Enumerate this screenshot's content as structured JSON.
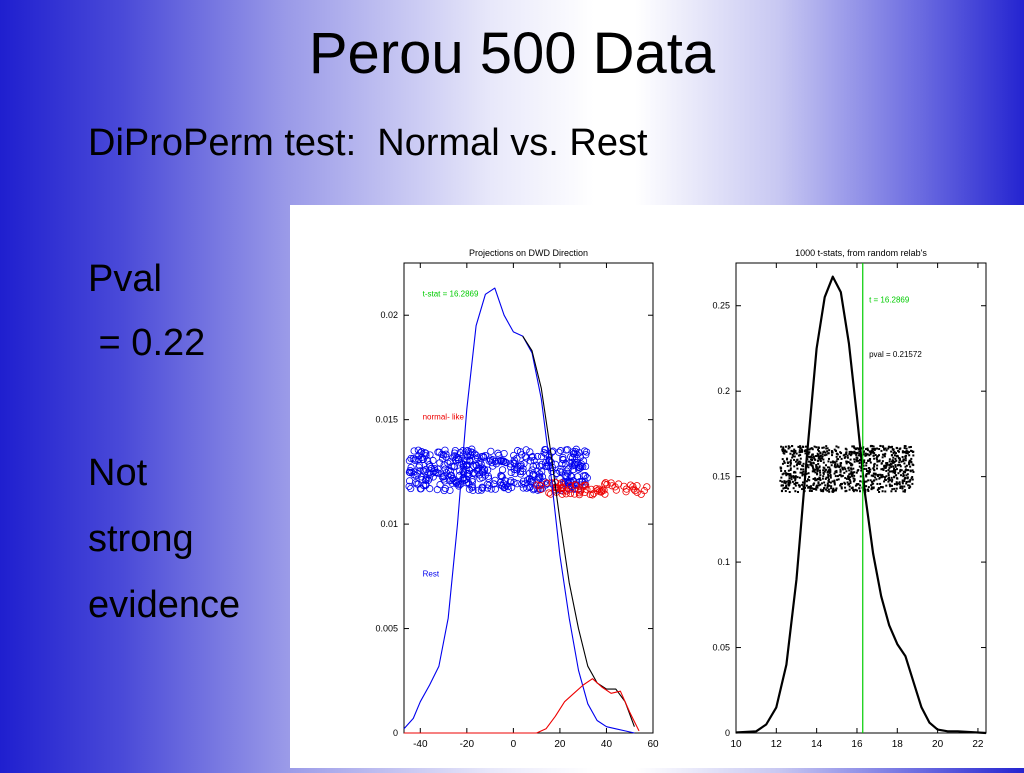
{
  "slide": {
    "title": "Perou 500 Data",
    "subtitle": "DiProPerm test:  Normal vs. Rest",
    "bullets": [
      "Pval",
      " = 0.22",
      "Not",
      "strong",
      "evidence"
    ]
  },
  "colors": {
    "blue": "#0000ee",
    "red": "#ee0000",
    "green": "#00cc00",
    "black": "#000000"
  },
  "chart_data": [
    {
      "type": "line",
      "title": "Projections on DWD Direction",
      "xlim": [
        -47,
        60
      ],
      "ylim": [
        0,
        0.0225
      ],
      "xticks": [
        -40,
        -20,
        0,
        20,
        40,
        60
      ],
      "yticks": [
        0,
        0.005,
        0.01,
        0.015,
        0.02
      ],
      "ytick_labels": [
        "0",
        "0.005",
        "0.01",
        "0.015",
        "0.02"
      ],
      "annotations": [
        {
          "text": "t-stat = 16.2869",
          "color": "#00cc00",
          "x": -39,
          "y": 0.0209
        },
        {
          "text": "normal- like",
          "color": "#ee0000",
          "x": -39,
          "y": 0.015
        },
        {
          "text": "Rest",
          "color": "#0000ee",
          "x": -39,
          "y": 0.0075
        }
      ],
      "series": [
        {
          "color": "#0000ee",
          "x": [
            -47,
            -43,
            -40,
            -36,
            -32,
            -28,
            -24,
            -20,
            -16,
            -12,
            -8,
            -4,
            0,
            4,
            8,
            12,
            16,
            20,
            24,
            28,
            32,
            36,
            40,
            44,
            48,
            52
          ],
          "y": [
            0.0002,
            0.0007,
            0.0015,
            0.0023,
            0.0032,
            0.0055,
            0.01,
            0.0155,
            0.0195,
            0.021,
            0.0213,
            0.02,
            0.0192,
            0.019,
            0.0182,
            0.016,
            0.0125,
            0.0085,
            0.0055,
            0.003,
            0.0014,
            0.0006,
            0.0003,
            0.0002,
            0.0001,
            0.0
          ]
        },
        {
          "color": "#000000",
          "x": [
            4,
            8,
            12,
            16,
            20,
            24,
            28,
            32,
            36,
            40,
            44,
            48,
            52
          ],
          "y": [
            0.019,
            0.0183,
            0.0165,
            0.0135,
            0.0102,
            0.0072,
            0.005,
            0.0032,
            0.0024,
            0.0021,
            0.0021,
            0.0015,
            0.0003
          ]
        },
        {
          "color": "#ee0000",
          "x": [
            -47,
            0,
            10,
            14,
            18,
            22,
            26,
            30,
            34,
            38,
            42,
            46,
            50,
            54
          ],
          "y": [
            0,
            0,
            0.0,
            0.0002,
            0.0008,
            0.0015,
            0.0019,
            0.0023,
            0.0026,
            0.0022,
            0.0019,
            0.002,
            0.001,
            0.0001
          ]
        }
      ],
      "scatter": [
        {
          "color": "#0000ee",
          "x_range": [
            -45,
            32
          ],
          "y_range": [
            0.0116,
            0.0136
          ],
          "count": 430
        },
        {
          "color": "#ee0000",
          "x_range": [
            10,
            58
          ],
          "y_range": [
            0.0114,
            0.012
          ],
          "count": 70
        }
      ]
    },
    {
      "type": "line",
      "title": "1000 t-stats, from random relab's",
      "xlim": [
        10,
        22.4
      ],
      "ylim": [
        0,
        0.275
      ],
      "xticks": [
        10,
        12,
        14,
        16,
        18,
        20,
        22
      ],
      "yticks": [
        0,
        0.05,
        0.1,
        0.15,
        0.2,
        0.25
      ],
      "ytick_labels": [
        "0",
        "0.05",
        "0.1",
        "0.15",
        "0.2",
        "0.25"
      ],
      "vline": {
        "x": 16.2869,
        "color": "#00cc00"
      },
      "annotations": [
        {
          "text": "t = 16.2869",
          "color": "#00cc00",
          "x": 16.6,
          "y": 0.252
        },
        {
          "text": "pval = 0.21572",
          "color": "#000000",
          "x": 16.6,
          "y": 0.22
        }
      ],
      "series": [
        {
          "color": "#000000",
          "x": [
            10,
            11,
            11.5,
            12,
            12.5,
            13,
            13.5,
            14,
            14.4,
            14.8,
            15.2,
            15.6,
            16,
            16.4,
            16.8,
            17.2,
            17.6,
            18,
            18.4,
            18.8,
            19.2,
            19.6,
            20,
            20.5,
            21,
            22.4
          ],
          "y": [
            0.0003,
            0.001,
            0.005,
            0.015,
            0.04,
            0.09,
            0.16,
            0.225,
            0.255,
            0.267,
            0.258,
            0.228,
            0.185,
            0.14,
            0.105,
            0.08,
            0.063,
            0.052,
            0.045,
            0.03,
            0.015,
            0.006,
            0.002,
            0.001,
            0.001,
            0.0
          ]
        }
      ],
      "scatter": [
        {
          "color": "#000000",
          "x_range": [
            12.2,
            18.8
          ],
          "y_range": [
            0.141,
            0.168
          ],
          "count": 1000
        }
      ]
    }
  ]
}
